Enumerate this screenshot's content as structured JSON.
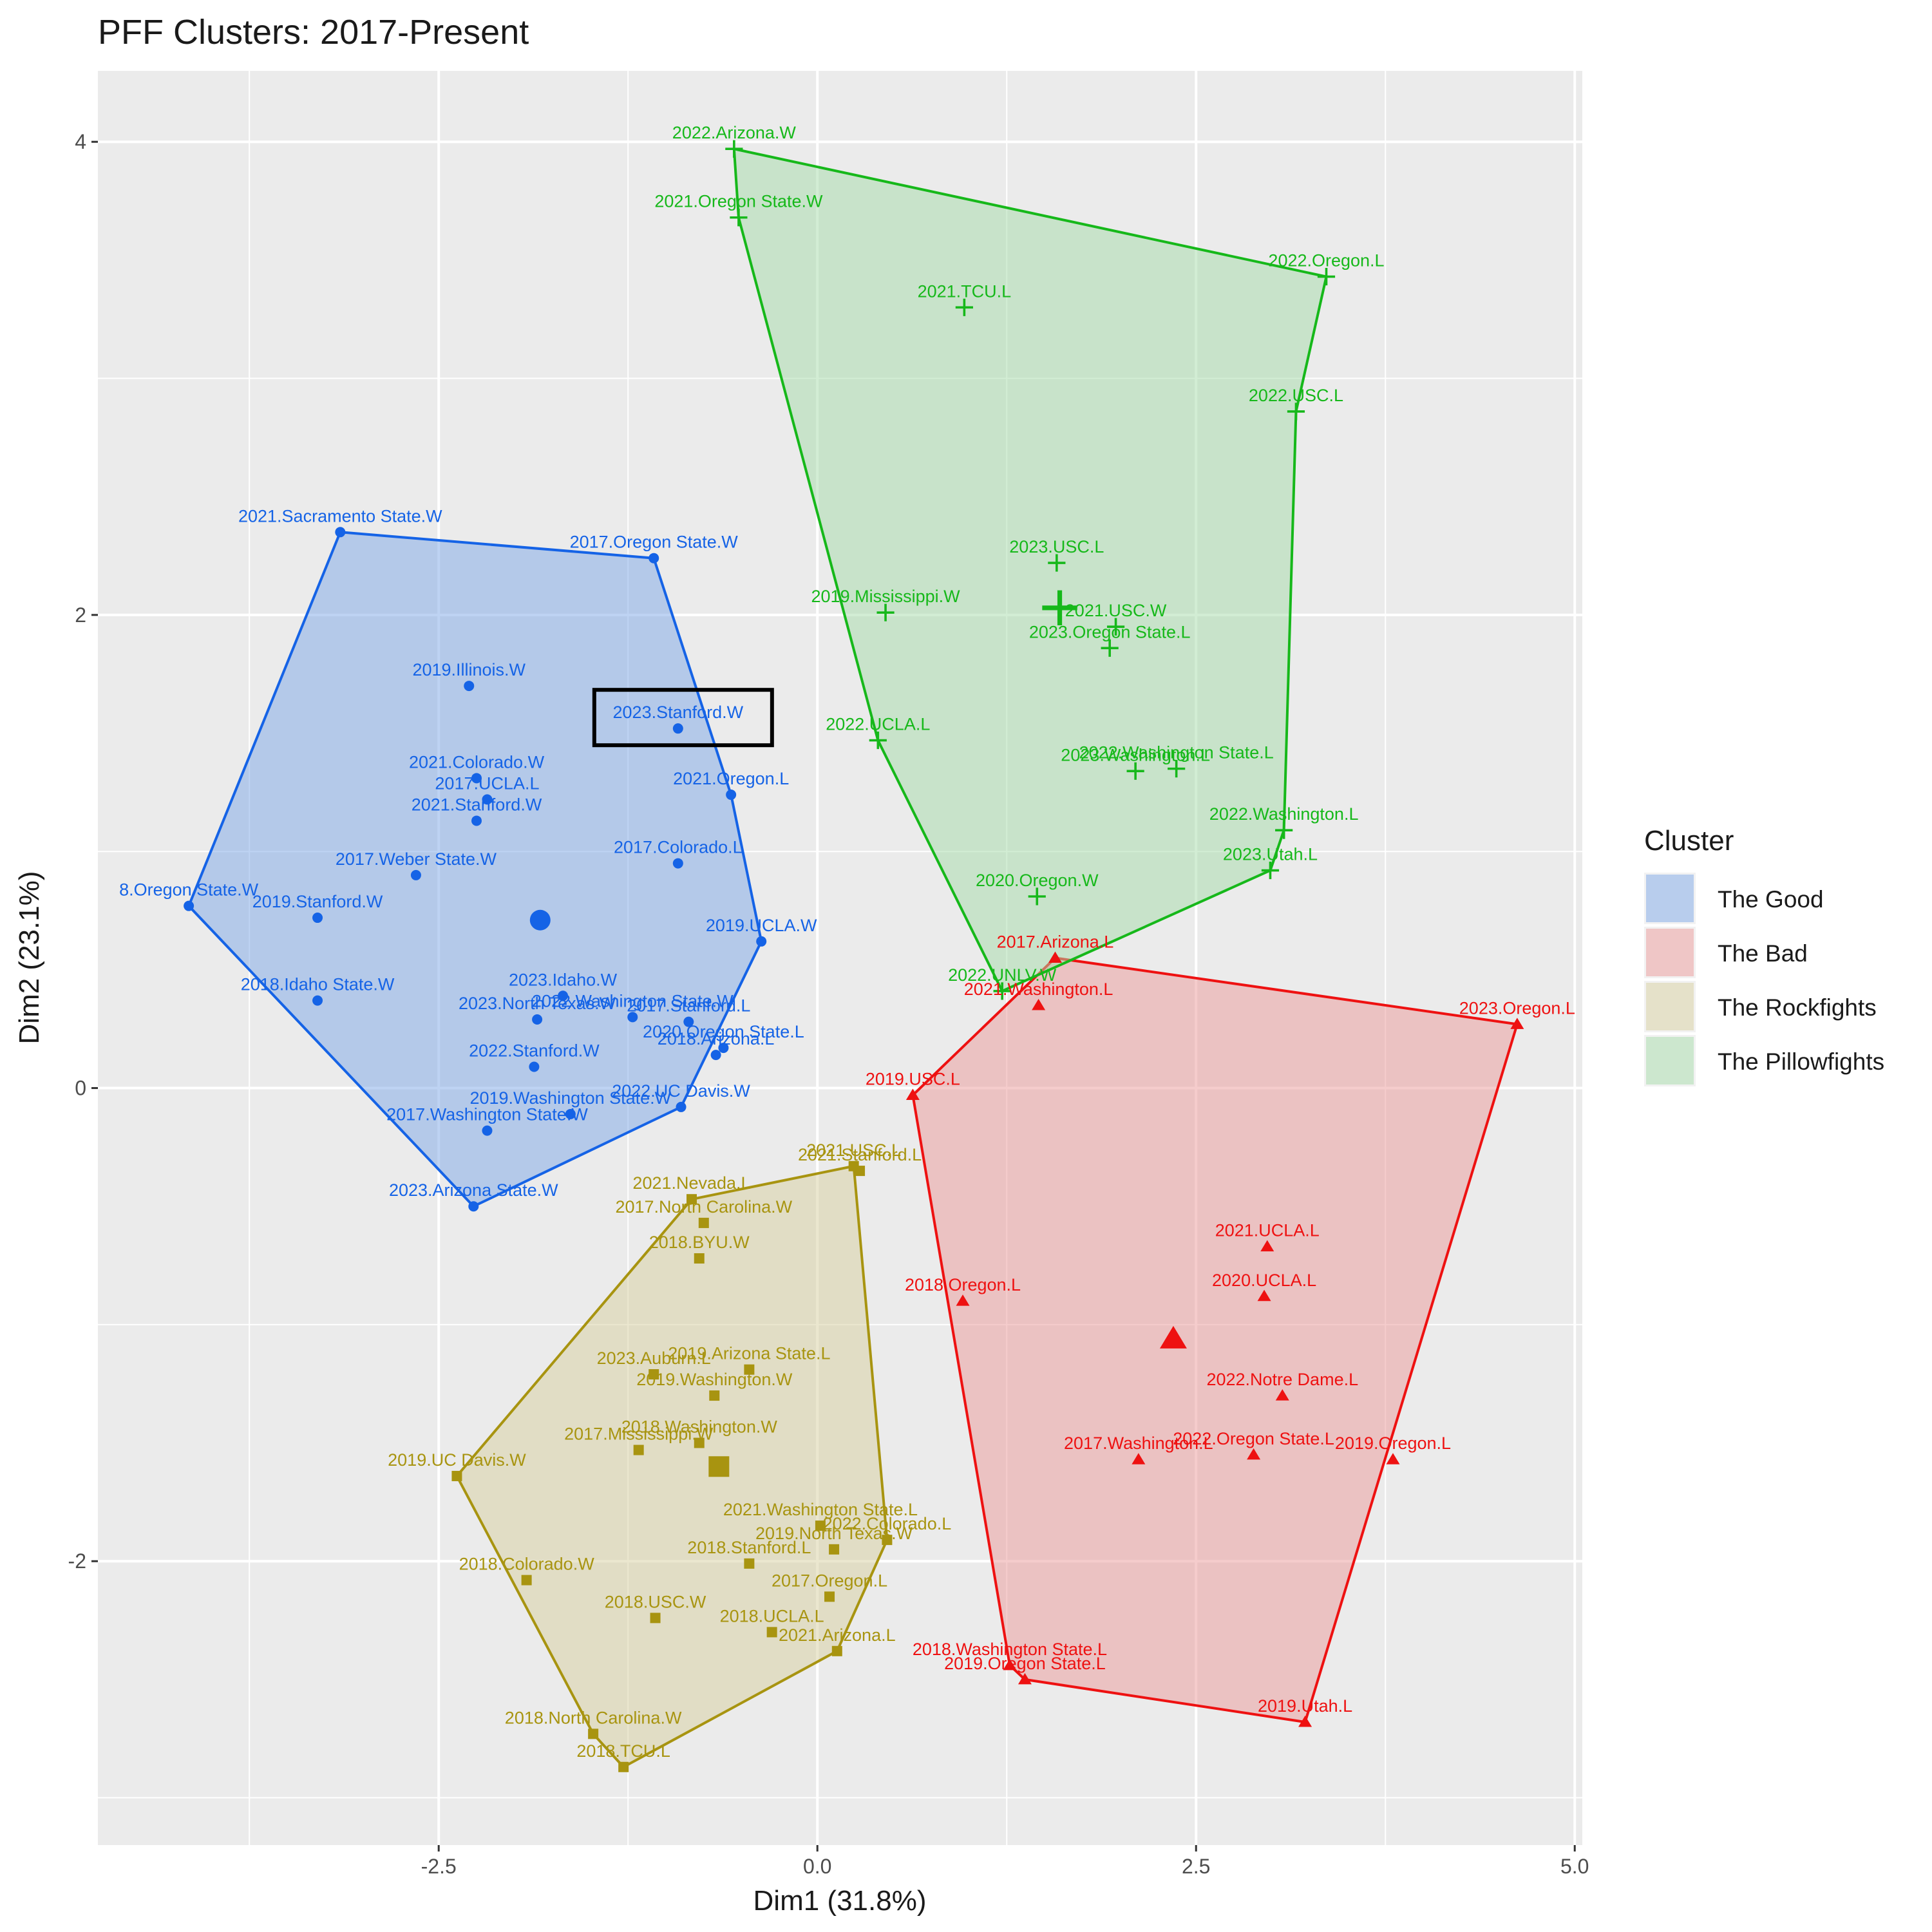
{
  "chart_data": {
    "type": "scatter",
    "title": "PFF Clusters: 2017-Present",
    "xlabel": "Dim1 (31.8%)",
    "ylabel": "Dim2 (23.1%)",
    "xlim": [
      -4.75,
      5.05
    ],
    "ylim": [
      -3.2,
      4.3
    ],
    "x_ticks": [
      -2.5,
      0.0,
      2.5,
      5.0
    ],
    "x_tick_labels": [
      "-2.5",
      "0.0",
      "2.5",
      "5.0"
    ],
    "y_ticks": [
      -2,
      0,
      2,
      4
    ],
    "y_tick_labels": [
      "-2",
      "0",
      "2",
      "4"
    ],
    "grid": true,
    "legend": {
      "title": "Cluster",
      "position": "right"
    },
    "highlight": {
      "label": "2023.Stanford.W",
      "x": -0.92,
      "y": 1.52
    },
    "series": [
      {
        "name": "The Good",
        "color": "#1563e6",
        "fill": "#7ea7e8",
        "marker": "circle",
        "centroid": {
          "x": -1.83,
          "y": 0.71
        },
        "hull": [
          "8.Oregon State.W",
          "2021.Sacramento State.W",
          "2017.Oregon State.W",
          "2021.Oregon.L",
          "2019.UCLA.W",
          "2022.UC Davis.W",
          "2023.Arizona State.W"
        ],
        "points": [
          {
            "label": "2021.Sacramento State.W",
            "x": -3.15,
            "y": 2.35
          },
          {
            "label": "2017.Oregon State.W",
            "x": -1.08,
            "y": 2.24
          },
          {
            "label": "2019.Illinois.W",
            "x": -2.3,
            "y": 1.7
          },
          {
            "label": "2023.Stanford.W",
            "x": -0.92,
            "y": 1.52
          },
          {
            "label": "2021.Colorado.W",
            "x": -2.25,
            "y": 1.31
          },
          {
            "label": "2021.Oregon.L",
            "x": -0.57,
            "y": 1.24
          },
          {
            "label": "2017.UCLA.L",
            "x": -2.18,
            "y": 1.22
          },
          {
            "label": "2021.Stanford.W",
            "x": -2.25,
            "y": 1.13
          },
          {
            "label": "2017.Colorado.L",
            "x": -0.92,
            "y": 0.95
          },
          {
            "label": "2017.Weber State.W",
            "x": -2.65,
            "y": 0.9
          },
          {
            "label": "8.Oregon State.W",
            "x": -4.15,
            "y": 0.77
          },
          {
            "label": "2019.Stanford.W",
            "x": -3.3,
            "y": 0.72
          },
          {
            "label": "2019.UCLA.W",
            "x": -0.37,
            "y": 0.62
          },
          {
            "label": "2018.Idaho State.W",
            "x": -3.3,
            "y": 0.37
          },
          {
            "label": "2023.Idaho.W",
            "x": -1.68,
            "y": 0.39
          },
          {
            "label": "2022.Washington State.W",
            "x": -1.22,
            "y": 0.3
          },
          {
            "label": "2023.North Texas.W",
            "x": -1.85,
            "y": 0.29
          },
          {
            "label": "2017.Stanford.L",
            "x": -0.85,
            "y": 0.28
          },
          {
            "label": "2020.Oregon State.L",
            "x": -0.62,
            "y": 0.17
          },
          {
            "label": "2018.Arizona.L",
            "x": -0.67,
            "y": 0.14
          },
          {
            "label": "2022.Stanford.W",
            "x": -1.87,
            "y": 0.09
          },
          {
            "label": "2022.UC Davis.W",
            "x": -0.9,
            "y": -0.08
          },
          {
            "label": "2019.Washington State.W",
            "x": -1.63,
            "y": -0.11
          },
          {
            "label": "2017.Washington State.W",
            "x": -2.18,
            "y": -0.18
          },
          {
            "label": "2023.Arizona State.W",
            "x": -2.27,
            "y": -0.5
          }
        ]
      },
      {
        "name": "The Bad",
        "color": "#ee1111",
        "fill": "#eb9999",
        "marker": "triangle",
        "centroid": {
          "x": 2.35,
          "y": -1.06
        },
        "hull": [
          "2019.USC.L",
          "2017.Arizona.L",
          "2023.Oregon.L",
          "2019.Utah.L",
          "2019.Oregon State.L",
          "2018.Washington State.L"
        ],
        "points": [
          {
            "label": "2017.Arizona.L",
            "x": 1.57,
            "y": 0.55
          },
          {
            "label": "2021.Washington.L",
            "x": 1.46,
            "y": 0.35
          },
          {
            "label": "2023.Oregon.L",
            "x": 4.62,
            "y": 0.27
          },
          {
            "label": "2019.USC.L",
            "x": 0.63,
            "y": -0.03
          },
          {
            "label": "2021.UCLA.L",
            "x": 2.97,
            "y": -0.67
          },
          {
            "label": "2020.UCLA.L",
            "x": 2.95,
            "y": -0.88
          },
          {
            "label": "2018.Oregon.L",
            "x": 0.96,
            "y": -0.9
          },
          {
            "label": "2022.Notre Dame.L",
            "x": 3.07,
            "y": -1.3
          },
          {
            "label": "2017.Washington.L",
            "x": 2.12,
            "y": -1.57
          },
          {
            "label": "2022.Oregon State.L",
            "x": 2.88,
            "y": -1.55
          },
          {
            "label": "2019.Oregon.L",
            "x": 3.8,
            "y": -1.57
          },
          {
            "label": "2018.Washington State.L",
            "x": 1.27,
            "y": -2.44
          },
          {
            "label": "2019.Oregon State.L",
            "x": 1.37,
            "y": -2.5
          },
          {
            "label": "2019.Utah.L",
            "x": 3.22,
            "y": -2.68
          }
        ]
      },
      {
        "name": "The Rockfights",
        "color": "#a89410",
        "fill": "#d8d0a0",
        "marker": "square",
        "centroid": {
          "x": -0.65,
          "y": -1.6
        },
        "hull": [
          "2019.UC Davis.W",
          "2021.Nevada.L",
          "2021.USC.L",
          "2022.Colorado.L",
          "2021.Arizona.L",
          "2018.TCU.L",
          "2018.North Carolina.W"
        ],
        "points": [
          {
            "label": "2021.USC.L",
            "x": 0.24,
            "y": -0.33
          },
          {
            "label": "2021.Stanford.L",
            "x": 0.28,
            "y": -0.35
          },
          {
            "label": "2021.Nevada.L",
            "x": -0.83,
            "y": -0.47
          },
          {
            "label": "2017.North Carolina.W",
            "x": -0.75,
            "y": -0.57
          },
          {
            "label": "2018.BYU.W",
            "x": -0.78,
            "y": -0.72
          },
          {
            "label": "2023.Auburn.L",
            "x": -1.08,
            "y": -1.21
          },
          {
            "label": "2019.Arizona State.L",
            "x": -0.45,
            "y": -1.19
          },
          {
            "label": "2019.Washington.W",
            "x": -0.68,
            "y": -1.3
          },
          {
            "label": "2018.Washington.W",
            "x": -0.78,
            "y": -1.5
          },
          {
            "label": "2017.Mississippi.W",
            "x": -1.18,
            "y": -1.53
          },
          {
            "label": "2019.UC Davis.W",
            "x": -2.38,
            "y": -1.64
          },
          {
            "label": "2021.Washington State.L",
            "x": 0.02,
            "y": -1.85
          },
          {
            "label": "2022.Colorado.L",
            "x": 0.46,
            "y": -1.91
          },
          {
            "label": "2019.North Texas.W",
            "x": 0.11,
            "y": -1.95
          },
          {
            "label": "2018.Stanford.L",
            "x": -0.45,
            "y": -2.01
          },
          {
            "label": "2018.Colorado.W",
            "x": -1.92,
            "y": -2.08
          },
          {
            "label": "2017.Oregon.L",
            "x": 0.08,
            "y": -2.15
          },
          {
            "label": "2018.USC.W",
            "x": -1.07,
            "y": -2.24
          },
          {
            "label": "2018.UCLA.L",
            "x": -0.3,
            "y": -2.3
          },
          {
            "label": "2021.Arizona.L",
            "x": 0.13,
            "y": -2.38
          },
          {
            "label": "2018.North Carolina.W",
            "x": -1.48,
            "y": -2.73
          },
          {
            "label": "2018.TCU.L",
            "x": -1.28,
            "y": -2.87
          }
        ]
      },
      {
        "name": "The Pillowfights",
        "color": "#16b81a",
        "fill": "#a6dcaa",
        "marker": "plus",
        "centroid": {
          "x": 1.6,
          "y": 2.03
        },
        "hull": [
          "2022.Arizona.W",
          "2022.Oregon.L",
          "2022.USC.L",
          "2022.Washington.L",
          "2023.Utah.L",
          "2022.UNLV.W",
          "2022.UCLA.L",
          "2021.Oregon State.W"
        ],
        "points": [
          {
            "label": "2022.Arizona.W",
            "x": -0.55,
            "y": 3.97
          },
          {
            "label": "2021.Oregon State.W",
            "x": -0.52,
            "y": 3.68
          },
          {
            "label": "2021.TCU.L",
            "x": 0.97,
            "y": 3.3
          },
          {
            "label": "2022.Oregon.L",
            "x": 3.36,
            "y": 3.43
          },
          {
            "label": "2022.USC.L",
            "x": 3.16,
            "y": 2.86
          },
          {
            "label": "2023.USC.L",
            "x": 1.58,
            "y": 2.22
          },
          {
            "label": "2019.Mississippi.W",
            "x": 0.45,
            "y": 2.01
          },
          {
            "label": "2021.USC.W",
            "x": 1.97,
            "y": 1.95
          },
          {
            "label": "2023.Oregon State.L",
            "x": 1.93,
            "y": 1.86
          },
          {
            "label": "2022.UCLA.L",
            "x": 0.4,
            "y": 1.47
          },
          {
            "label": "2022.Washington State.L",
            "x": 2.37,
            "y": 1.35
          },
          {
            "label": "2023.Washington.L",
            "x": 2.1,
            "y": 1.34
          },
          {
            "label": "2022.Washington.L",
            "x": 3.08,
            "y": 1.09
          },
          {
            "label": "2023.Utah.L",
            "x": 2.99,
            "y": 0.92
          },
          {
            "label": "2020.Oregon.W",
            "x": 1.45,
            "y": 0.81
          },
          {
            "label": "2022.UNLV.W",
            "x": 1.22,
            "y": 0.41
          }
        ]
      }
    ]
  }
}
